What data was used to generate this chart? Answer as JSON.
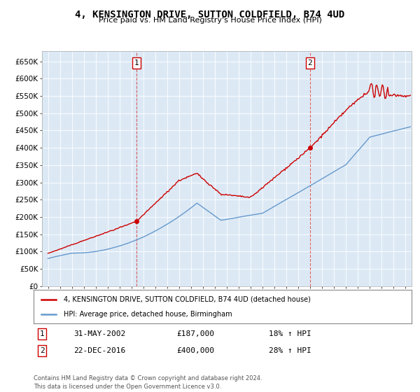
{
  "title": "4, KENSINGTON DRIVE, SUTTON COLDFIELD, B74 4UD",
  "subtitle": "Price paid vs. HM Land Registry's House Price Index (HPI)",
  "ylabel_ticks": [
    "£0",
    "£50K",
    "£100K",
    "£150K",
    "£200K",
    "£250K",
    "£300K",
    "£350K",
    "£400K",
    "£450K",
    "£500K",
    "£550K",
    "£600K",
    "£650K"
  ],
  "ylim": [
    0,
    680000
  ],
  "xlim_start": 1994.5,
  "xlim_end": 2025.5,
  "bg_color": "#dce9f5",
  "red_color": "#cc0000",
  "blue_color": "#6699cc",
  "sale1_x": 2002.42,
  "sale1_y": 187000,
  "sale2_x": 2016.98,
  "sale2_y": 400000,
  "legend_label_red": "4, KENSINGTON DRIVE, SUTTON COLDFIELD, B74 4UD (detached house)",
  "legend_label_blue": "HPI: Average price, detached house, Birmingham",
  "annotation1_date": "31-MAY-2002",
  "annotation1_price": "£187,000",
  "annotation1_pct": "18% ↑ HPI",
  "annotation2_date": "22-DEC-2016",
  "annotation2_price": "£400,000",
  "annotation2_pct": "28% ↑ HPI",
  "footer": "Contains HM Land Registry data © Crown copyright and database right 2024.\nThis data is licensed under the Open Government Licence v3.0."
}
